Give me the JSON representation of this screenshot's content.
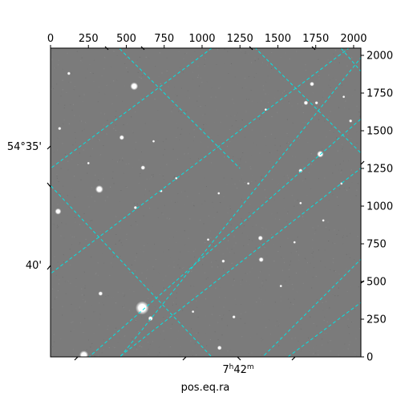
{
  "chart_data": {
    "type": "image",
    "xlabel": "pos.eq.ra",
    "ylabel": "",
    "top_ticks": [
      "0",
      "250",
      "500",
      "750",
      "1000",
      "1250",
      "1500",
      "1750",
      "2000"
    ],
    "right_ticks": [
      "0",
      "250",
      "500",
      "750",
      "1000",
      "1250",
      "1500",
      "1750",
      "2000"
    ],
    "pixel_range": {
      "x": [
        0,
        2048
      ],
      "y": [
        0,
        2048
      ]
    },
    "bottom_tick_label": {
      "text": "7h42m",
      "hours": "7",
      "h": "h",
      "minutes": "42",
      "m": "m"
    },
    "left_tick_labels": [
      "54°35'",
      "40'"
    ],
    "grid": true,
    "grid_color": "#00e5e5",
    "background_sky": "#7b7b7b",
    "stars": [
      {
        "x": 121,
        "y": 1880,
        "r": 1.5
      },
      {
        "x": 552,
        "y": 1795,
        "r": 3.5
      },
      {
        "x": 60,
        "y": 1515,
        "r": 1.5
      },
      {
        "x": 470,
        "y": 1455,
        "r": 2.2
      },
      {
        "x": 680,
        "y": 1430,
        "r": 1.2
      },
      {
        "x": 250,
        "y": 1285,
        "r": 1.2
      },
      {
        "x": 610,
        "y": 1255,
        "r": 2.0
      },
      {
        "x": 322,
        "y": 1112,
        "r": 3.5
      },
      {
        "x": 50,
        "y": 965,
        "r": 2.8
      },
      {
        "x": 560,
        "y": 990,
        "r": 1.5
      },
      {
        "x": 830,
        "y": 1185,
        "r": 1.2
      },
      {
        "x": 1110,
        "y": 1085,
        "r": 1.2
      },
      {
        "x": 1385,
        "y": 788,
        "r": 2.2
      },
      {
        "x": 1390,
        "y": 645,
        "r": 2.2
      },
      {
        "x": 1140,
        "y": 635,
        "r": 1.5
      },
      {
        "x": 1040,
        "y": 778,
        "r": 1.2
      },
      {
        "x": 330,
        "y": 420,
        "r": 2.0
      },
      {
        "x": 605,
        "y": 325,
        "r": 6.0
      },
      {
        "x": 660,
        "y": 255,
        "r": 2.2
      },
      {
        "x": 1420,
        "y": 1640,
        "r": 1.2
      },
      {
        "x": 1685,
        "y": 1685,
        "r": 2.0
      },
      {
        "x": 1725,
        "y": 1810,
        "r": 2.0
      },
      {
        "x": 1755,
        "y": 1685,
        "r": 1.5
      },
      {
        "x": 1935,
        "y": 1725,
        "r": 1.2
      },
      {
        "x": 1780,
        "y": 1345,
        "r": 3.0
      },
      {
        "x": 1650,
        "y": 1235,
        "r": 1.8
      },
      {
        "x": 1980,
        "y": 1565,
        "r": 1.5
      },
      {
        "x": 1305,
        "y": 1150,
        "r": 1.2
      },
      {
        "x": 1920,
        "y": 1150,
        "r": 1.2
      },
      {
        "x": 1800,
        "y": 905,
        "r": 1.2
      },
      {
        "x": 1650,
        "y": 1020,
        "r": 1.2
      },
      {
        "x": 1210,
        "y": 265,
        "r": 1.5
      },
      {
        "x": 1115,
        "y": 60,
        "r": 2.0
      },
      {
        "x": 220,
        "y": 12,
        "r": 4.0
      },
      {
        "x": 730,
        "y": 1100,
        "r": 1.2
      },
      {
        "x": 940,
        "y": 300,
        "r": 1.2
      },
      {
        "x": 1520,
        "y": 470,
        "r": 1.2
      },
      {
        "x": 1610,
        "y": 760,
        "r": 1.2
      }
    ]
  }
}
